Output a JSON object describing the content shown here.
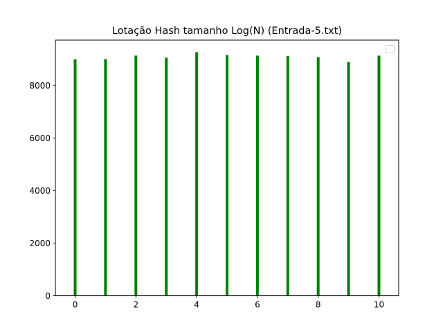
{
  "chart_data": {
    "type": "bar",
    "title": "Lotação Hash tamanho Log(N) (Entrada-5.txt)",
    "xlabel": "",
    "ylabel": "",
    "x": [
      0,
      1,
      2,
      3,
      4,
      5,
      6,
      7,
      8,
      9,
      10
    ],
    "values": [
      9000,
      9010,
      9140,
      9060,
      9270,
      9160,
      9140,
      9120,
      9080,
      8900,
      9140
    ],
    "xlim": [
      -0.65,
      10.65
    ],
    "ylim": [
      0,
      9730
    ],
    "xticks": [
      "0",
      "2",
      "4",
      "6",
      "8",
      "10"
    ],
    "yticks": [
      "0",
      "2000",
      "4000",
      "6000",
      "8000"
    ],
    "bar_color": "#008000",
    "grid": false,
    "legend": {
      "placement": "top-right",
      "entries": []
    }
  }
}
